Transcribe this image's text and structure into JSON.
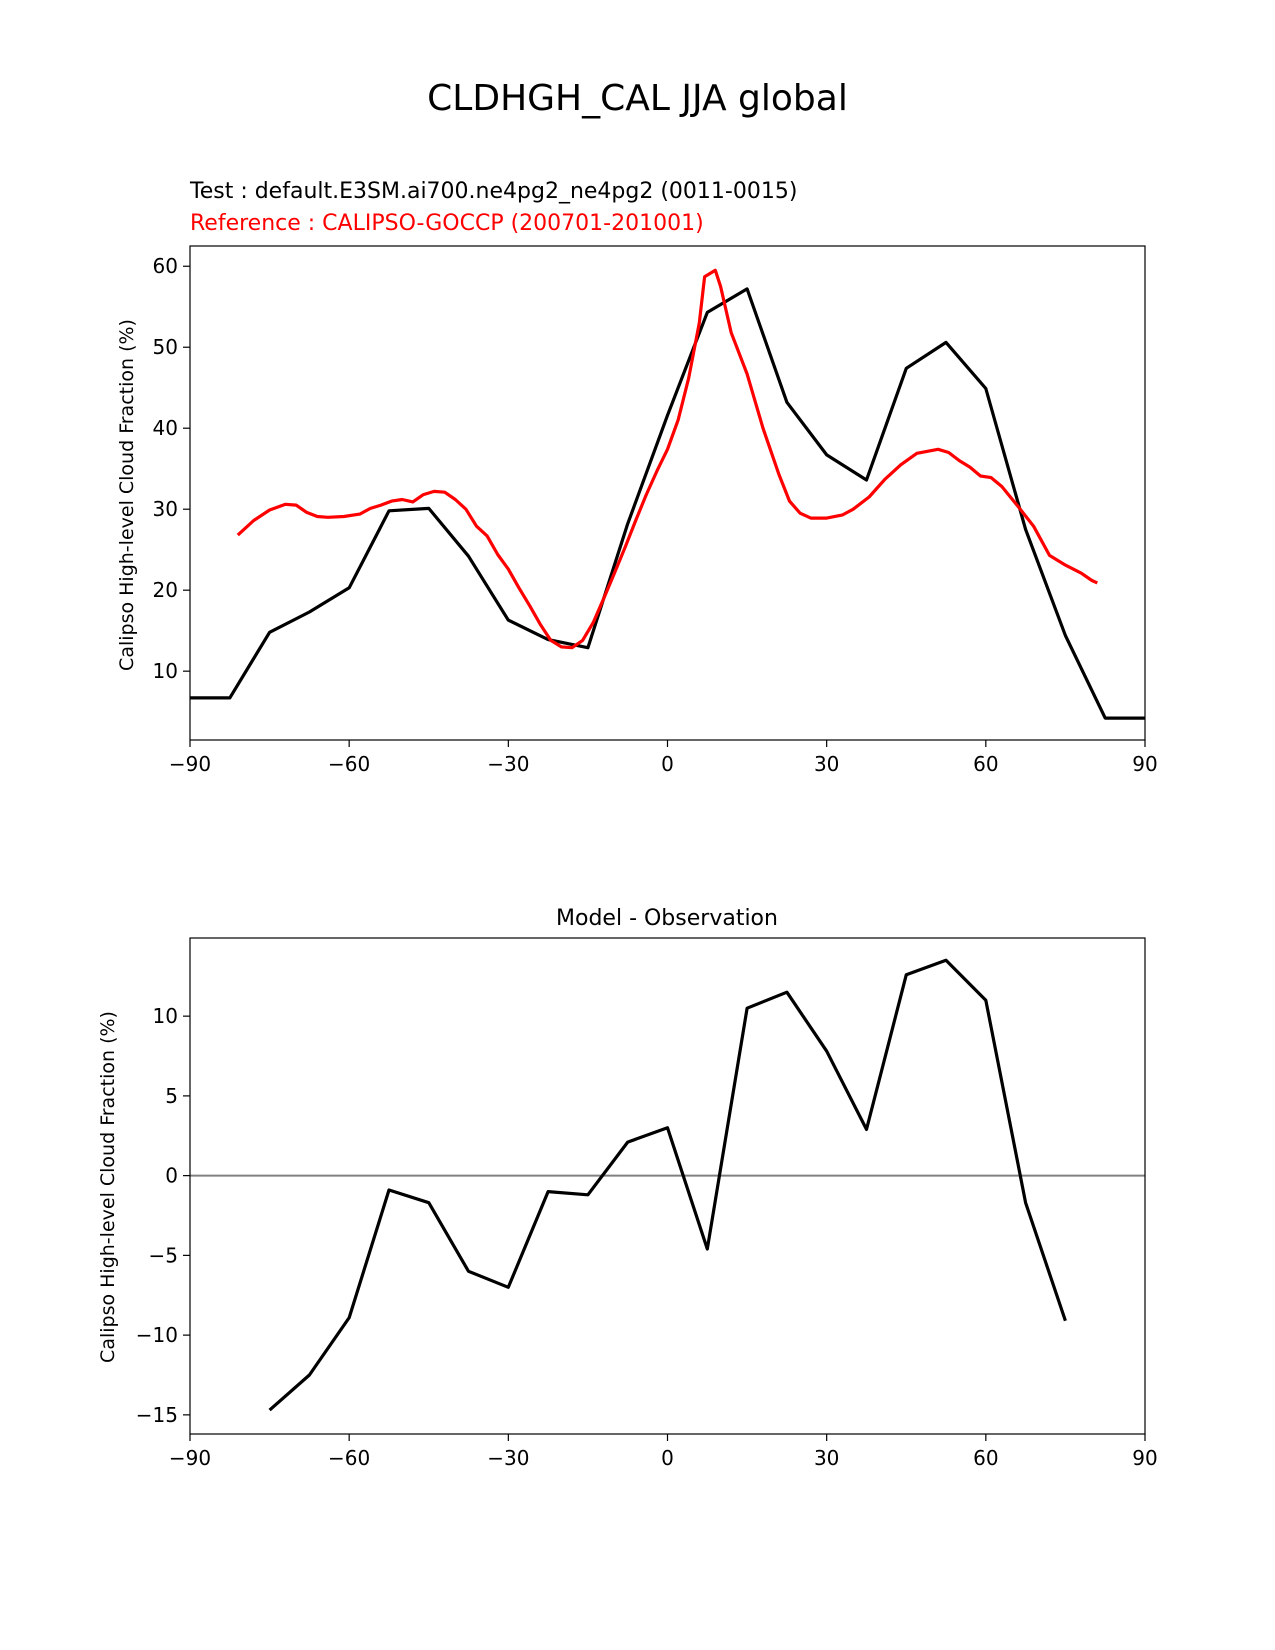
{
  "suptitle": "CLDHGH_CAL JJA global",
  "colors": {
    "test": "#000000",
    "reference": "#ff0000",
    "zero_line": "#808080"
  },
  "chart_data": [
    {
      "type": "line",
      "title_test": "Test : default.E3SM.ai700.ne4pg2_ne4pg2 (0011-0015)",
      "title_reference": "Reference : CALIPSO-GOCCP (200701-201001)",
      "xlabel": "",
      "ylabel": "Calipso High-level Cloud Fraction (%)",
      "xlim": [
        -90,
        90
      ],
      "ylim": [
        1.5,
        62.5
      ],
      "xticks": [
        -90,
        -60,
        -30,
        0,
        30,
        60,
        90
      ],
      "xtick_labels": [
        "−90",
        "−60",
        "−30",
        "0",
        "30",
        "60",
        "90"
      ],
      "yticks": [
        10,
        20,
        30,
        40,
        50,
        60
      ],
      "ytick_labels": [
        "10",
        "20",
        "30",
        "40",
        "50",
        "60"
      ],
      "grid": false,
      "series": [
        {
          "name": "Test",
          "color": "#000000",
          "x": [
            -90,
            -82.5,
            -75,
            -67.5,
            -60,
            -52.5,
            -45,
            -37.5,
            -30,
            -22.5,
            -15,
            -7.5,
            0,
            7.5,
            15,
            22.5,
            30,
            37.5,
            45,
            52.5,
            60,
            67.5,
            75,
            82.5,
            90
          ],
          "y": [
            6.7,
            6.7,
            14.8,
            17.3,
            20.3,
            29.8,
            30.1,
            24.2,
            16.3,
            13.9,
            12.9,
            28.2,
            41.6,
            54.3,
            57.2,
            43.2,
            36.7,
            33.6,
            47.4,
            50.6,
            44.9,
            27.5,
            14.4,
            4.2,
            4.2
          ]
        },
        {
          "name": "Reference",
          "color": "#ff0000",
          "x": [
            -81,
            -78,
            -75,
            -72,
            -70,
            -68,
            -66,
            -64,
            -61,
            -58,
            -56,
            -54,
            -52,
            -50,
            -48,
            -46,
            -44,
            -42,
            -40,
            -38,
            -36,
            -34,
            -32,
            -30,
            -28,
            -26,
            -24,
            -22,
            -20,
            -18,
            -16,
            -14,
            -12,
            -10,
            -8,
            -6,
            -4,
            -2,
            0,
            2,
            4,
            6,
            7,
            9,
            10,
            12,
            15,
            18,
            21,
            23,
            25,
            27,
            30,
            33,
            35,
            38,
            41,
            44,
            47,
            51,
            53,
            55,
            57,
            59,
            61,
            63,
            66,
            69,
            72,
            75,
            78,
            80,
            81
          ],
          "y": [
            26.8,
            28.6,
            29.9,
            30.6,
            30.5,
            29.6,
            29.1,
            29.0,
            29.1,
            29.4,
            30.1,
            30.5,
            31.0,
            31.2,
            30.9,
            31.8,
            32.2,
            32.1,
            31.2,
            30.0,
            27.9,
            26.7,
            24.4,
            22.6,
            20.3,
            18.1,
            15.8,
            13.8,
            13.0,
            12.9,
            13.8,
            16.0,
            19.0,
            22.1,
            25.3,
            28.6,
            31.8,
            34.7,
            37.4,
            41.0,
            46.2,
            53.0,
            58.7,
            59.5,
            57.5,
            51.8,
            46.7,
            40.0,
            34.3,
            31.0,
            29.5,
            28.9,
            28.9,
            29.3,
            30.0,
            31.5,
            33.7,
            35.5,
            36.9,
            37.4,
            37.0,
            36.0,
            35.2,
            34.1,
            33.9,
            32.8,
            30.4,
            27.9,
            24.3,
            23.1,
            22.1,
            21.2,
            20.9
          ]
        }
      ]
    },
    {
      "type": "line",
      "title": "Model - Observation",
      "xlabel": "",
      "ylabel": "Calipso High-level Cloud Fraction (%)",
      "xlim": [
        -90,
        90
      ],
      "ylim": [
        -16.2,
        14.9
      ],
      "xticks": [
        -90,
        -60,
        -30,
        0,
        30,
        60,
        90
      ],
      "xtick_labels": [
        "−90",
        "−60",
        "−30",
        "0",
        "30",
        "60",
        "90"
      ],
      "yticks": [
        -15,
        -10,
        -5,
        0,
        5,
        10
      ],
      "ytick_labels": [
        "−15",
        "−10",
        "−5",
        "0",
        "5",
        "10"
      ],
      "zero_line": 0,
      "grid": false,
      "series": [
        {
          "name": "Model - Observation",
          "color": "#000000",
          "x": [
            -75,
            -67.5,
            -60,
            -52.5,
            -45,
            -37.5,
            -30,
            -22.5,
            -15,
            -7.5,
            0,
            7.5,
            15,
            22.5,
            30,
            37.5,
            45,
            52.5,
            60,
            67.5,
            75
          ],
          "y": [
            -14.7,
            -12.5,
            -8.9,
            -0.9,
            -1.7,
            -6.0,
            -7.0,
            -1.0,
            -1.2,
            2.1,
            3.0,
            -4.6,
            10.5,
            11.5,
            7.8,
            2.9,
            12.6,
            13.5,
            11.0,
            -1.7,
            -9.1
          ]
        }
      ]
    }
  ]
}
